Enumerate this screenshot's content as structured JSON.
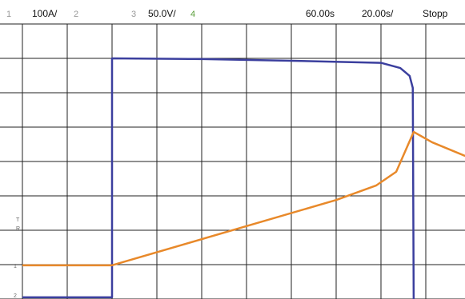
{
  "header": {
    "ch1": "1",
    "ch1_scale": "100A/",
    "ch2": "2",
    "ch3": "3",
    "ch3_scale": "50.0V/",
    "ch4": "4",
    "position": "60.00s",
    "timebase": "20.00s/",
    "status": "Stopp"
  },
  "markers": {
    "trigger": "T",
    "ref": "R",
    "ch1": "1",
    "ch2": "2"
  },
  "chart_data": {
    "type": "line",
    "xlim": [
      0,
      10
    ],
    "ylim": [
      0,
      8
    ],
    "grid": true,
    "series": [
      {
        "color": "#3b3f9e",
        "x": [
          0,
          2,
          2,
          4,
          6,
          8,
          8.43,
          8.64,
          8.71,
          8.73
        ],
        "values": [
          0.05,
          0.05,
          7.0,
          6.98,
          6.93,
          6.87,
          6.72,
          6.49,
          6.14,
          0
        ]
      },
      {
        "color": "#e8892a",
        "x": [
          0,
          2,
          7,
          7.89,
          8.34,
          8.73,
          9.14,
          9.88
        ],
        "values": [
          0.98,
          0.98,
          2.88,
          3.3,
          3.7,
          4.86,
          4.56,
          4.16
        ]
      }
    ]
  }
}
